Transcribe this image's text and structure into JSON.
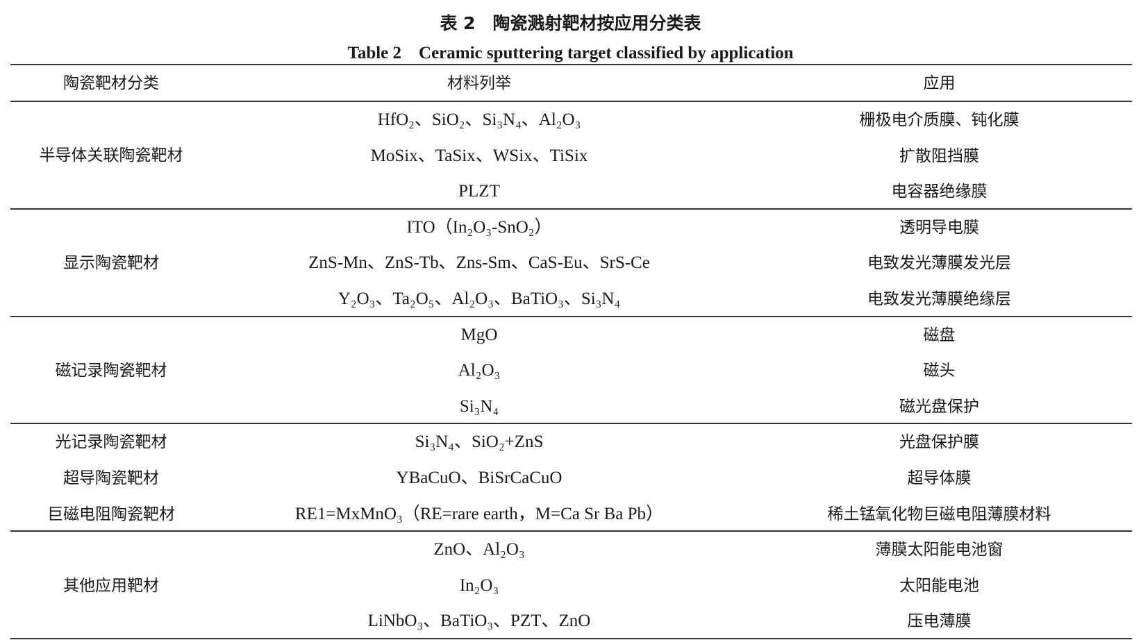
{
  "caption": {
    "zh": "表 2　陶瓷溅射靶材按应用分类表",
    "en": "Table 2　Ceramic sputtering target classified by application"
  },
  "table": {
    "headers": [
      "陶瓷靶材分类",
      "材料列举",
      "应用"
    ],
    "groups": [
      {
        "category": "半导体关联陶瓷靶材",
        "rows": [
          {
            "material": "HfO₂、SiO₂、Si₃N₄、Al₂O₃",
            "application": "栅极电介质膜、钝化膜"
          },
          {
            "material": "MoSix、TaSix、WSix、TiSix",
            "application": "扩散阻挡膜"
          },
          {
            "material": "PLZT",
            "application": "电容器绝缘膜"
          }
        ]
      },
      {
        "category": "显示陶瓷靶材",
        "rows": [
          {
            "material": "ITO（In₂O₃-SnO₂）",
            "application": "透明导电膜"
          },
          {
            "material": "ZnS-Mn、ZnS-Tb、Zns-Sm、CaS-Eu、SrS-Ce",
            "application": "电致发光薄膜发光层"
          },
          {
            "material": "Y₂O₃、Ta₂O₅、Al₂O₃、BaTiO₃、Si₃N₄",
            "application": "电致发光薄膜绝缘层"
          }
        ]
      },
      {
        "category": "磁记录陶瓷靶材",
        "rows": [
          {
            "material": "MgO",
            "application": "磁盘"
          },
          {
            "material": "Al₂O₃",
            "application": "磁头"
          },
          {
            "material": "Si₃N₄",
            "application": "磁光盘保护"
          }
        ]
      },
      {
        "category": "",
        "rows": [
          {
            "category": "光记录陶瓷靶材",
            "material": "Si₃N₄、SiO₂+ZnS",
            "application": "光盘保护膜"
          },
          {
            "category": "超导陶瓷靶材",
            "material": "YBaCuO、BiSrCaCuO",
            "application": "超导体膜"
          },
          {
            "category": "巨磁电阻陶瓷靶材",
            "material": "RE1=MxMnO₃（RE=rare earth，M=Ca Sr Ba Pb）",
            "application": "稀土锰氧化物巨磁电阻薄膜材料"
          }
        ]
      },
      {
        "category": "其他应用靶材",
        "rows": [
          {
            "material": "ZnO、Al₂O₃",
            "application": "薄膜太阳能电池窗"
          },
          {
            "material": "In₂O₃",
            "application": "太阳能电池"
          },
          {
            "material": "LiNbO₃、BaTiO₃、PZT、ZnO",
            "application": "压电薄膜"
          }
        ]
      }
    ]
  }
}
